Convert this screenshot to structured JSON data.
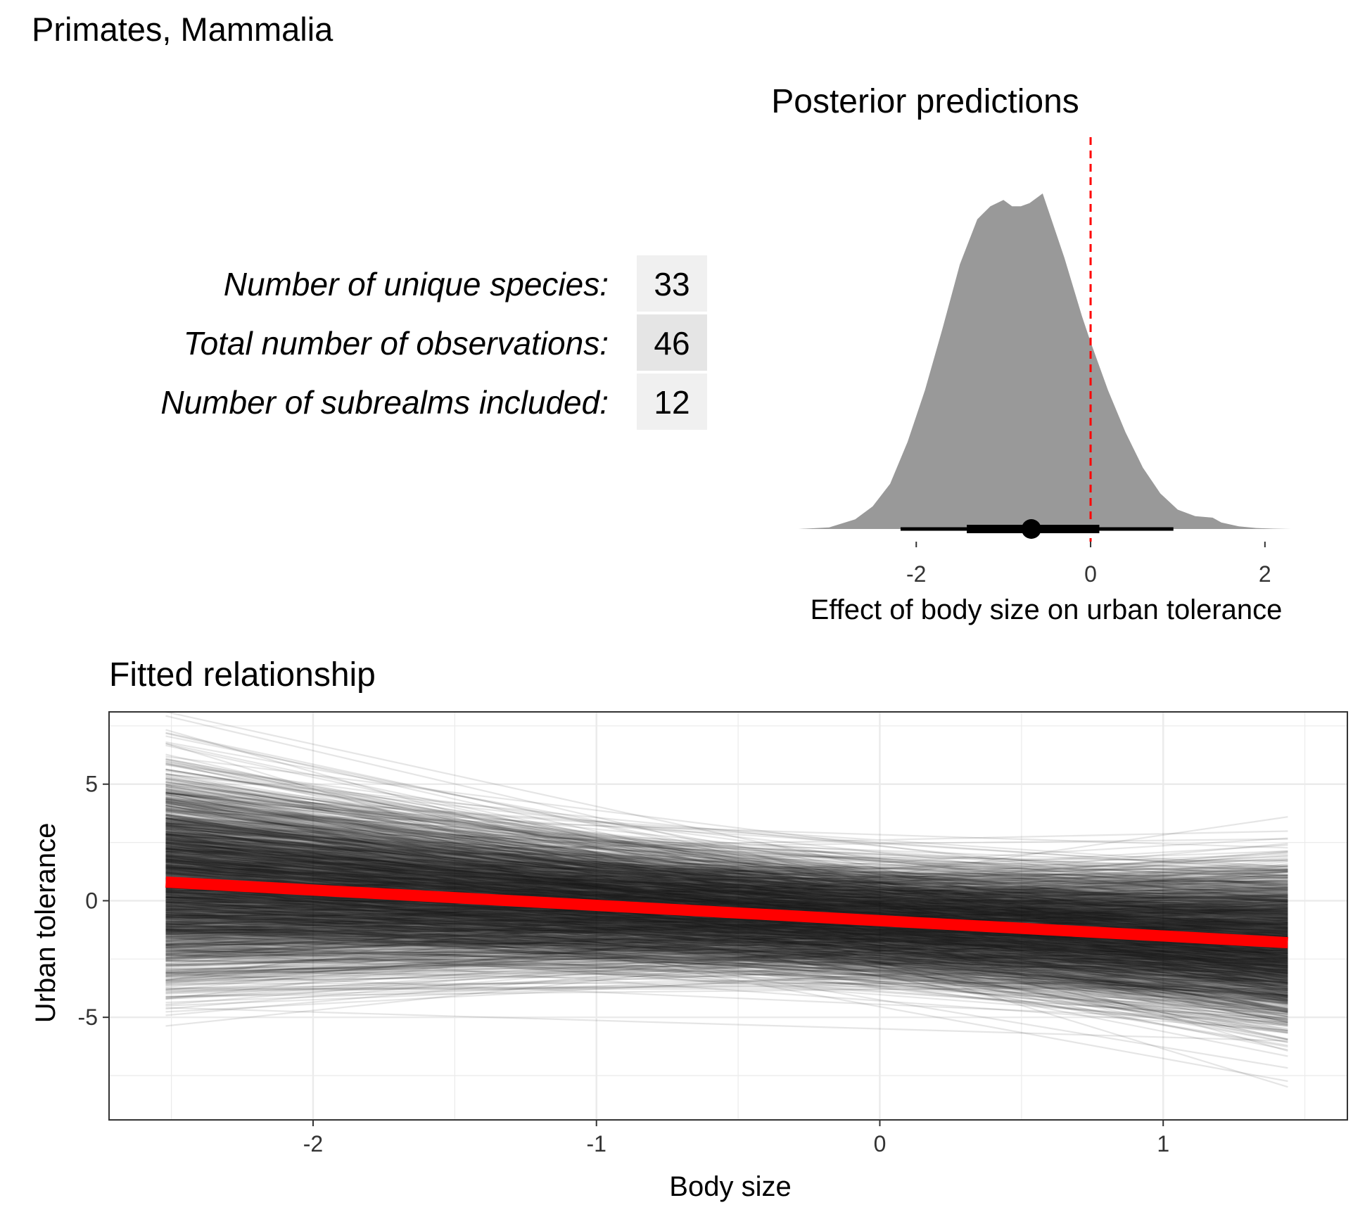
{
  "page_title": "Primates, Mammalia",
  "summary_table": {
    "rows": [
      {
        "label": "Number of unique species:",
        "value": "33"
      },
      {
        "label": "Total number of observations:",
        "value": "46"
      },
      {
        "label": "Number of subrealms included:",
        "value": "12"
      }
    ]
  },
  "colors": {
    "density_fill": "#999999",
    "reference_line": "#ff0000",
    "fit_line": "#ff0000",
    "draw_lines": "#000000",
    "grid": "#ebebeb",
    "table_cell_light": "#f0f0f0",
    "table_cell_dark": "#e5e5e5"
  },
  "chart_data": [
    {
      "type": "area",
      "title": "Posterior predictions",
      "xlabel": "Effect of body size on urban tolerance",
      "ylabel": "",
      "xlim": [
        -3.35,
        2.3
      ],
      "xticks": [
        -2,
        0,
        2
      ],
      "xtick_labels": [
        "-2",
        "0",
        "2"
      ],
      "reference_line_x": 0,
      "grid": false,
      "density": {
        "x": [
          -3.35,
          -3.0,
          -2.7,
          -2.5,
          -2.3,
          -2.1,
          -1.9,
          -1.7,
          -1.5,
          -1.3,
          -1.15,
          -1.0,
          -0.9,
          -0.8,
          -0.7,
          -0.6,
          -0.55,
          -0.5,
          -0.4,
          -0.3,
          -0.2,
          -0.1,
          0.0,
          0.2,
          0.4,
          0.6,
          0.8,
          1.0,
          1.2,
          1.4,
          1.5,
          1.7,
          1.9,
          2.1,
          2.3
        ],
        "y": [
          0.0,
          0.005,
          0.03,
          0.07,
          0.14,
          0.27,
          0.43,
          0.62,
          0.82,
          0.96,
          1.0,
          1.02,
          1.0,
          1.0,
          1.01,
          1.03,
          1.04,
          1.0,
          0.92,
          0.84,
          0.75,
          0.66,
          0.58,
          0.43,
          0.3,
          0.19,
          0.11,
          0.06,
          0.04,
          0.035,
          0.02,
          0.008,
          0.003,
          0.001,
          0.0
        ]
      },
      "point_estimate": -0.68,
      "interval_inner": [
        -1.42,
        0.1
      ],
      "interval_outer": [
        -2.18,
        0.95
      ]
    },
    {
      "type": "line",
      "title": "Fitted relationship",
      "xlabel": "Body size",
      "ylabel": "Urban tolerance",
      "xlim": [
        -2.72,
        1.65
      ],
      "ylim": [
        -9.4,
        8.1
      ],
      "xticks": [
        -2,
        -1,
        0,
        1
      ],
      "xtick_labels": [
        "-2",
        "-1",
        "0",
        "1"
      ],
      "yticks": [
        -5,
        0,
        5
      ],
      "ytick_labels": [
        "-5",
        "0",
        "5"
      ],
      "grid": true,
      "x_range": [
        -2.52,
        1.44
      ],
      "fit_line": {
        "x": [
          -2.52,
          1.44
        ],
        "y": [
          0.8,
          -1.8
        ]
      },
      "posterior_draws": {
        "count": 2000,
        "intercept_mean": -0.85,
        "intercept_sd": 1.15,
        "slope_mean": -0.7,
        "slope_sd": 0.72
      }
    }
  ]
}
